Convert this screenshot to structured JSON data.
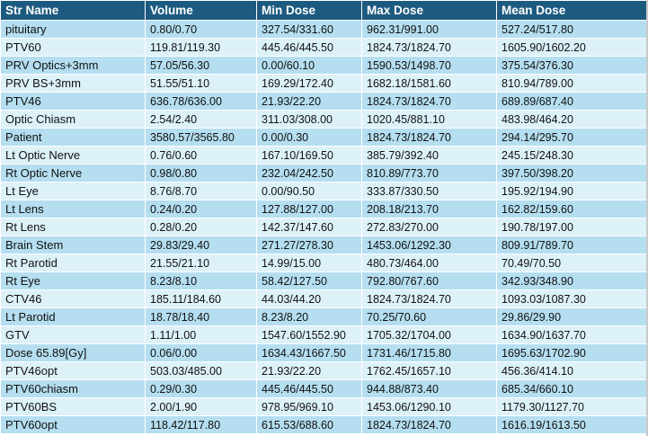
{
  "columns": [
    "Str Name",
    "Volume",
    "Min Dose",
    "Max Dose",
    "Mean Dose"
  ],
  "rows": [
    [
      "pituitary",
      "0.80/0.70",
      "327.54/331.60",
      "962.31/991.00",
      "527.24/517.80"
    ],
    [
      "PTV60",
      "119.81/119.30",
      "445.46/445.50",
      "1824.73/1824.70",
      "1605.90/1602.20"
    ],
    [
      "PRV Optics+3mm",
      "57.05/56.30",
      "0.00/60.10",
      "1590.53/1498.70",
      "375.54/376.30"
    ],
    [
      "PRV BS+3mm",
      "51.55/51.10",
      "169.29/172.40",
      "1682.18/1581.60",
      "810.94/789.00"
    ],
    [
      "PTV46",
      "636.78/636.00",
      "21.93/22.20",
      "1824.73/1824.70",
      "689.89/687.40"
    ],
    [
      "Optic Chiasm",
      "2.54/2.40",
      "311.03/308.00",
      "1020.45/881.10",
      "483.98/464.20"
    ],
    [
      "Patient",
      "3580.57/3565.80",
      "0.00/0.30",
      "1824.73/1824.70",
      "294.14/295.70"
    ],
    [
      "Lt Optic Nerve",
      "0.76/0.60",
      "167.10/169.50",
      "385.79/392.40",
      "245.15/248.30"
    ],
    [
      "Rt Optic Nerve",
      "0.98/0.80",
      "232.04/242.50",
      "810.89/773.70",
      "397.50/398.20"
    ],
    [
      "Lt Eye",
      "8.76/8.70",
      "0.00/90.50",
      "333.87/330.50",
      "195.92/194.90"
    ],
    [
      "Lt Lens",
      "0.24/0.20",
      "127.88/127.00",
      "208.18/213.70",
      "162.82/159.60"
    ],
    [
      "Rt Lens",
      "0.28/0.20",
      "142.37/147.60",
      "272.83/270.00",
      "190.78/197.00"
    ],
    [
      "Brain Stem",
      "29.83/29.40",
      "271.27/278.30",
      "1453.06/1292.30",
      "809.91/789.70"
    ],
    [
      "Rt Parotid",
      "21.55/21.10",
      "14.99/15.00",
      "480.73/464.00",
      "70.49/70.50"
    ],
    [
      "Rt Eye",
      "8.23/8.10",
      "58.42/127.50",
      "792.80/767.60",
      "342.93/348.90"
    ],
    [
      "CTV46",
      "185.11/184.60",
      "44.03/44.20",
      "1824.73/1824.70",
      "1093.03/1087.30"
    ],
    [
      "Lt Parotid",
      "18.78/18.40",
      "8.23/8.20",
      "70.25/70.60",
      "29.86/29.90"
    ],
    [
      "GTV",
      "1.11/1.00",
      "1547.60/1552.90",
      "1705.32/1704.00",
      "1634.90/1637.70"
    ],
    [
      "Dose 65.89[Gy]",
      "0.06/0.00",
      "1634.43/1667.50",
      "1731.46/1715.80",
      "1695.63/1702.90"
    ],
    [
      "PTV46opt",
      "503.03/485.00",
      "21.93/22.20",
      "1762.45/1657.10",
      "456.36/414.10"
    ],
    [
      "PTV60chiasm",
      "0.29/0.30",
      "445.46/445.50",
      "944.88/873.40",
      "685.34/660.10"
    ],
    [
      "PTV60BS",
      "2.00/1.90",
      "978.95/969.10",
      "1453.06/1290.10",
      "1179.30/1127.70"
    ],
    [
      "PTV60opt",
      "118.42/117.80",
      "615.53/688.60",
      "1824.73/1824.70",
      "1616.19/1613.50"
    ]
  ],
  "colors": {
    "header_bg": "#1d5a80",
    "header_text": "#ffffff",
    "row_odd": "#b5def0",
    "row_even": "#ddf1f9"
  }
}
